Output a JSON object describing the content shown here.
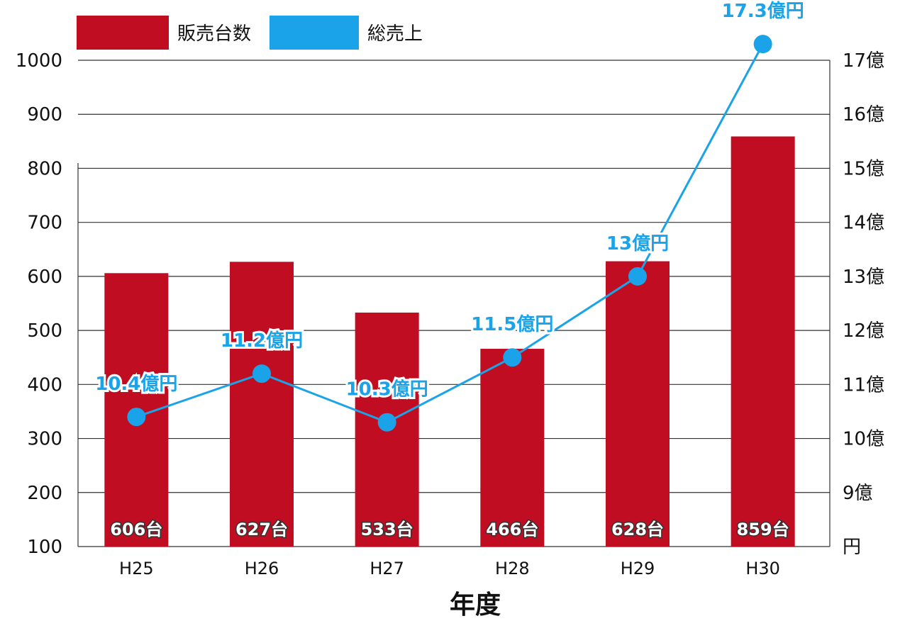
{
  "chart_data": {
    "type": "bar",
    "categories": [
      "H25",
      "H26",
      "H27",
      "H28",
      "H29",
      "H30"
    ],
    "xlabel": "年度",
    "series": [
      {
        "name": "販売台数",
        "type": "bar",
        "axis": "left",
        "color": "#c00d22",
        "values": [
          606,
          627,
          533,
          466,
          628,
          859
        ],
        "labels": [
          "606台",
          "627台",
          "533台",
          "466台",
          "628台",
          "859台"
        ]
      },
      {
        "name": "総売上",
        "type": "line",
        "axis": "right",
        "color": "#1aa3e8",
        "values": [
          10.4,
          11.2,
          10.3,
          11.5,
          13,
          17.3
        ],
        "labels": [
          "10.4億円",
          "11.2億円",
          "10.3億円",
          "11.5億円",
          "13億円",
          "17.3億円"
        ]
      }
    ],
    "left_axis": {
      "ylim": [
        100,
        1000
      ],
      "ticks": [
        "100",
        "200",
        "300",
        "400",
        "500",
        "600",
        "700",
        "800",
        "900",
        "1000"
      ]
    },
    "right_axis": {
      "ylim": [
        8,
        17
      ],
      "ticks": [
        "円",
        "9億",
        "10億",
        "11億",
        "12億",
        "13億",
        "14億",
        "15億",
        "16億",
        "17億"
      ]
    },
    "grid": true,
    "legend_position": "top-left"
  }
}
